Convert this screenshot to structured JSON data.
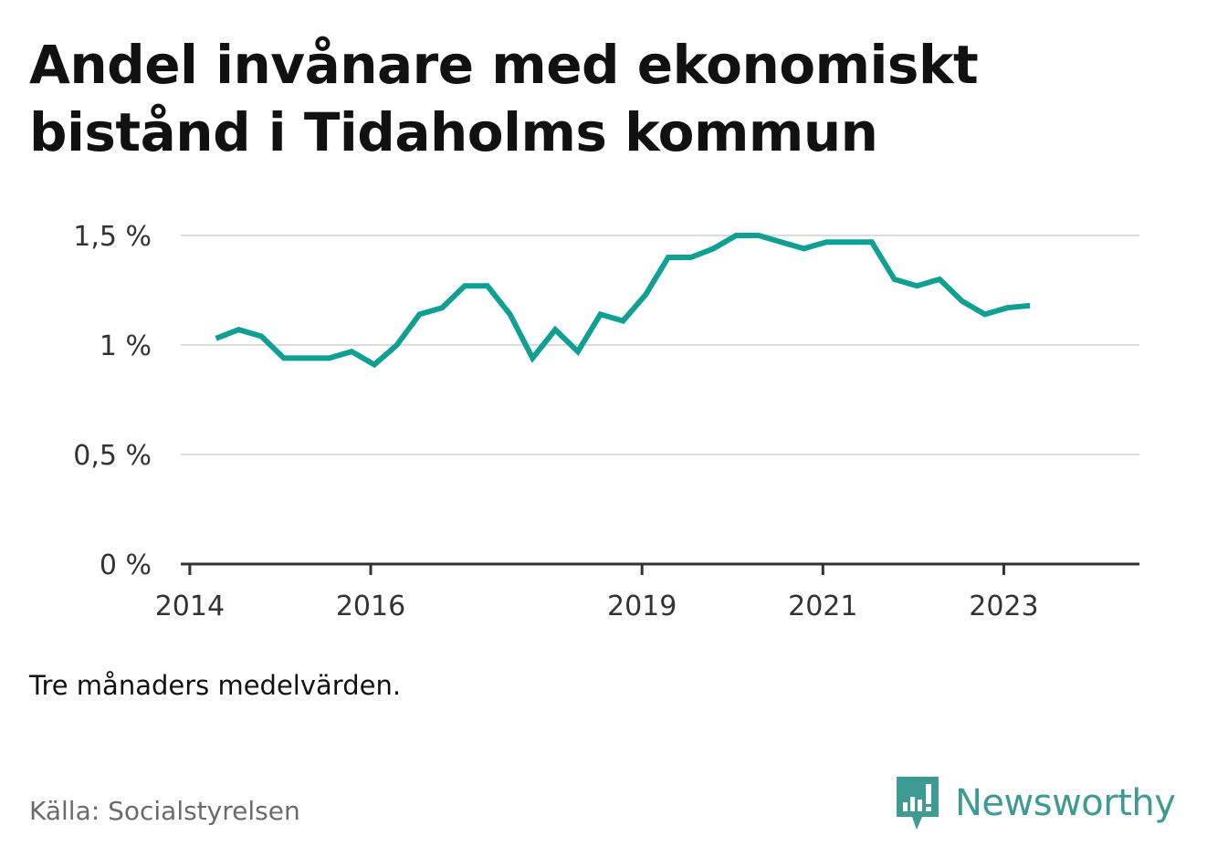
{
  "title": "Andel invånare med ekonomiskt bistånd i Tidaholms kommun",
  "note": "Tre månaders medelvärden.",
  "source": "Källa: Socialstyrelsen",
  "brand": {
    "name": "Newsworthy",
    "icon": "newsworthy-logo-icon",
    "color": "#3d9b94"
  },
  "colors": {
    "line": "#0fa093",
    "grid": "#dcdcdc",
    "axis": "#333333"
  },
  "chart_data": {
    "type": "line",
    "title": "Andel invånare med ekonomiskt bistånd i Tidaholms kommun",
    "xlabel": "",
    "ylabel": "",
    "x_ticks": [
      {
        "label": "2014",
        "value": 2014.0
      },
      {
        "label": "2016",
        "value": 2016.0
      },
      {
        "label": "2019",
        "value": 2019.0
      },
      {
        "label": "2021",
        "value": 2021.0
      },
      {
        "label": "2023",
        "value": 2023.0
      }
    ],
    "y_ticks": [
      {
        "label": "0 %",
        "value": 0
      },
      {
        "label": "0,5 %",
        "value": 0.5
      },
      {
        "label": "1 %",
        "value": 1.0
      },
      {
        "label": "1,5 %",
        "value": 1.5
      }
    ],
    "xlim": [
      2013.9,
      2024.5
    ],
    "ylim": [
      0,
      1.5
    ],
    "grid": true,
    "series": [
      {
        "x": [
          2014.29,
          2014.54,
          2014.79,
          2015.04,
          2015.29,
          2015.54,
          2015.79,
          2016.04,
          2016.29,
          2016.54,
          2016.79,
          2017.04,
          2017.29,
          2017.54,
          2017.79,
          2018.04,
          2018.29,
          2018.54,
          2018.79,
          2019.04,
          2019.29,
          2019.54,
          2019.79,
          2020.04,
          2020.29,
          2020.54,
          2020.79,
          2021.04,
          2021.29,
          2021.54,
          2021.79,
          2022.04,
          2022.29,
          2022.54,
          2022.79,
          2023.04,
          2023.29
        ],
        "y": [
          1.03,
          1.07,
          1.04,
          0.94,
          0.94,
          0.94,
          0.97,
          0.91,
          1.0,
          1.14,
          1.17,
          1.27,
          1.27,
          1.14,
          0.94,
          1.07,
          0.97,
          1.14,
          1.11,
          1.23,
          1.4,
          1.4,
          1.44,
          1.5,
          1.5,
          1.47,
          1.44,
          1.47,
          1.47,
          1.47,
          1.3,
          1.27,
          1.3,
          1.2,
          1.14,
          1.17,
          1.18
        ]
      }
    ]
  }
}
